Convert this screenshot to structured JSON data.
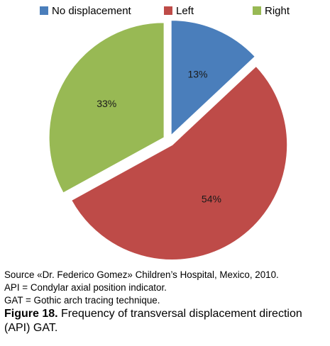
{
  "chart_data": {
    "type": "pie",
    "title": "",
    "legend_position": "top",
    "slices": [
      {
        "label": "No displacement",
        "value": 13,
        "display": "13%",
        "color": "#4a7ebb"
      },
      {
        "label": "Left",
        "value": 54,
        "display": "54%",
        "color": "#be4b48"
      },
      {
        "label": "Right",
        "value": 33,
        "display": "33%",
        "color": "#98b954"
      }
    ]
  },
  "notes": {
    "source": "Source «Dr. Federico Gomez» Children’s Hospital, Mexico, 2010.",
    "api": "API = Condylar axial position indicator.",
    "gat": "GAT = Gothic arch tracing technique."
  },
  "caption": {
    "label": "Figure 18.",
    "text": "Frequency of transversal displacement direction (API) GAT."
  }
}
